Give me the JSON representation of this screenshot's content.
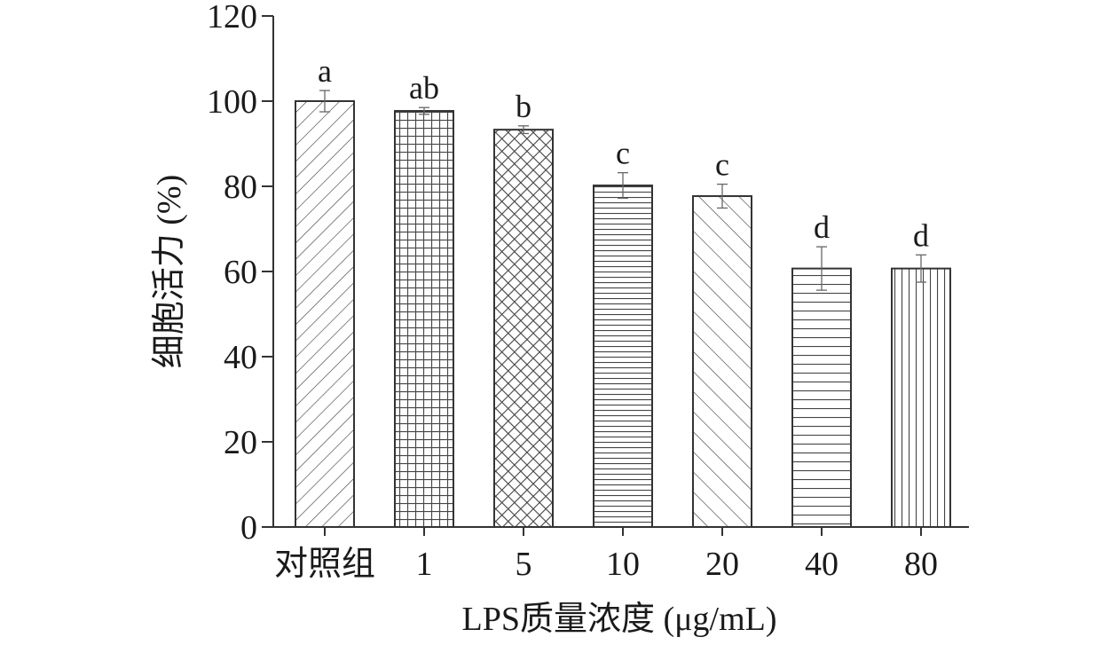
{
  "chart_data": {
    "type": "bar",
    "xlabel": "LPS质量浓度 (μg/mL)",
    "ylabel": "细胞活力 (%)",
    "ylim": [
      0,
      120
    ],
    "yticks": [
      0,
      20,
      40,
      60,
      80,
      100,
      120
    ],
    "categories": [
      "对照组",
      "1",
      "5",
      "10",
      "20",
      "40",
      "80"
    ],
    "values": [
      100,
      97.7,
      93.3,
      80.2,
      77.7,
      60.7,
      60.7
    ],
    "errors": [
      2.5,
      0.8,
      0.9,
      3.0,
      2.8,
      5.1,
      3.2
    ],
    "significance": [
      "a",
      "ab",
      "b",
      "c",
      "c",
      "d",
      "d"
    ],
    "patterns": [
      "diag-up",
      "grid",
      "crosshatch",
      "horizontal-dense",
      "diag-down",
      "horizontal-sparse",
      "vertical"
    ],
    "grid": false,
    "legend": "none",
    "colors": {
      "stroke": "#333333",
      "text": "#1a1a1a",
      "background": "#ffffff"
    }
  }
}
